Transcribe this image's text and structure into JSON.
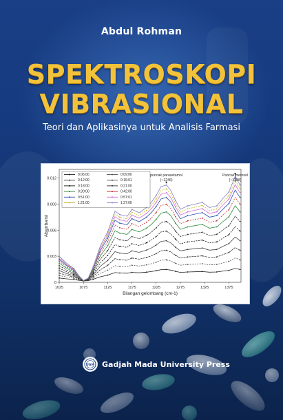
{
  "cover": {
    "author": "Abdul Rohman",
    "title_line1": "SPEKTROSKOPI",
    "title_line2": "VIBRASIONAL",
    "subtitle": "Teori dan Aplikasinya untuk Analisis Farmasi",
    "publisher": "Gadjah Mada University Press",
    "publisher_logo_text": "UGM",
    "title_color": "#f2c33a",
    "background_color": "#163a7e"
  },
  "chart_data": {
    "type": "line",
    "title": "",
    "xlabel": "Bilangan gelombang (cm-1)",
    "ylabel": "Absorbansi",
    "xlim": [
      1025,
      1400
    ],
    "ylim": [
      0,
      0.013
    ],
    "x_ticks": [
      1025,
      1075,
      1125,
      1175,
      1225,
      1275,
      1325,
      1375
    ],
    "x_tick_labels": [
      "1025",
      "1075",
      "1125",
      "1175",
      "1225",
      "1275",
      "1325",
      "1375"
    ],
    "y_ticks": [
      0,
      0.003,
      0.006,
      0.009,
      0.012
    ],
    "y_tick_labels": [
      "0",
      "0.003",
      "0.006",
      "0.009",
      "0.012"
    ],
    "grid": false,
    "legend_position": "top-left",
    "annotations": [
      {
        "text": "puncak parasetamol",
        "text2": "(~1246)",
        "x": 1246
      },
      {
        "text": "Puncak metosol",
        "text2": "(~1388)",
        "x": 1388
      }
    ],
    "series": [
      {
        "name": "0:06:00",
        "scale": 0.12,
        "color": "#222222"
      },
      {
        "name": "0:09:00",
        "scale": 0.22,
        "color": "#555555"
      },
      {
        "name": "0:12:00",
        "scale": 0.32,
        "color": "#333333"
      },
      {
        "name": "0:15:01",
        "scale": 0.42,
        "color": "#444444"
      },
      {
        "name": "0:18:00",
        "scale": 0.52,
        "color": "#111111"
      },
      {
        "name": "0:21:00",
        "scale": 0.62,
        "color": "#333333"
      },
      {
        "name": "0:30:00",
        "scale": 0.72,
        "color": "#2d8a3a"
      },
      {
        "name": "0:42:00",
        "scale": 0.8,
        "color": "#c03030"
      },
      {
        "name": "0:51:00",
        "scale": 0.87,
        "color": "#2a4fb0"
      },
      {
        "name": "0:57:01",
        "scale": 0.92,
        "color": "#d06ad0"
      },
      {
        "name": "1:21:00",
        "scale": 0.96,
        "color": "#c8b820"
      },
      {
        "name": "1:27:00",
        "scale": 1.0,
        "color": "#8080c0"
      }
    ],
    "shape": {
      "x": [
        1025,
        1040,
        1055,
        1065,
        1075,
        1085,
        1095,
        1110,
        1125,
        1140,
        1150,
        1165,
        1175,
        1190,
        1205,
        1215,
        1225,
        1235,
        1246,
        1255,
        1265,
        1275,
        1290,
        1305,
        1320,
        1335,
        1350,
        1365,
        1375,
        1388,
        1398
      ],
      "y": [
        0.003,
        0.0022,
        0.0016,
        0.0008,
        0.0002,
        0.0005,
        0.0018,
        0.0042,
        0.0058,
        0.0082,
        0.0078,
        0.0076,
        0.0084,
        0.008,
        0.0086,
        0.0092,
        0.01,
        0.011,
        0.0112,
        0.0106,
        0.0094,
        0.0084,
        0.0088,
        0.009,
        0.0092,
        0.0086,
        0.0088,
        0.0098,
        0.0104,
        0.0122,
        0.0112
      ]
    }
  }
}
